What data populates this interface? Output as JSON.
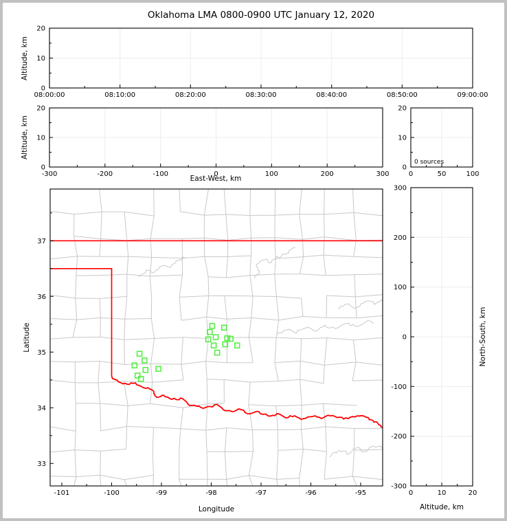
{
  "title": "Oklahoma LMA 0800-0900 UTC January 12, 2020",
  "colors": {
    "state_border": "#ff0000",
    "county_line": "#c8c8c8",
    "river_line": "#c8c8c8",
    "station_marker": "#55ee44",
    "gridline": "#ececec",
    "axis": "#000000",
    "frame_border": "#c1c1c1",
    "background": "#ffffff"
  },
  "chart_data": [
    {
      "id": "altitude_vs_time",
      "type": "scatter",
      "xlabel": "",
      "ylabel": "Altitude, km",
      "x_tick_labels": [
        "08:00:00",
        "08:10:00",
        "08:20:00",
        "08:30:00",
        "08:40:00",
        "08:50:00",
        "09:00:00"
      ],
      "y_tick_labels": [
        "0",
        "10",
        "20"
      ],
      "ylim": [
        0,
        20
      ],
      "grid": true,
      "points": []
    },
    {
      "id": "altitude_vs_eastwest",
      "type": "scatter",
      "xlabel": "East-West, km",
      "ylabel": "Altitude, km",
      "x_tick_labels": [
        "-300",
        "-200",
        "-100",
        "0",
        "100",
        "200",
        "300"
      ],
      "y_tick_labels": [
        "0",
        "10",
        "20"
      ],
      "xlim": [
        -300,
        300
      ],
      "ylim": [
        0,
        20
      ],
      "grid": true,
      "points": []
    },
    {
      "id": "altitude_source_histogram",
      "type": "scatter",
      "annotation": "0 sources",
      "x_tick_labels": [
        "0",
        "50",
        "100"
      ],
      "y_tick_labels": [
        "0",
        "10",
        "20"
      ],
      "xlim": [
        0,
        100
      ],
      "ylim": [
        0,
        20
      ],
      "grid": true,
      "points": []
    },
    {
      "id": "plan_view_map",
      "type": "scatter",
      "xlabel": "Longitude",
      "ylabel": "Latitude",
      "x_tick_labels": [
        "-101",
        "-100",
        "-99",
        "-98",
        "-97",
        "-96",
        "-95"
      ],
      "y_tick_labels": [
        "33",
        "34",
        "35",
        "36",
        "37"
      ],
      "xlim": [
        -101.234,
        -94.558
      ],
      "ylim": [
        32.596,
        37.93
      ],
      "state_border_latitude_north": 37.0,
      "panhandle_south_latitude": 36.5,
      "panhandle_east_longitude": -100.0,
      "stations_lon_lat": [
        [
          -97.98,
          35.47
        ],
        [
          -97.74,
          35.44
        ],
        [
          -98.03,
          35.36
        ],
        [
          -97.91,
          35.27
        ],
        [
          -98.06,
          35.23
        ],
        [
          -97.68,
          35.25
        ],
        [
          -97.61,
          35.24
        ],
        [
          -97.95,
          35.12
        ],
        [
          -97.72,
          35.14
        ],
        [
          -97.48,
          35.12
        ],
        [
          -97.88,
          34.99
        ],
        [
          -99.44,
          34.97
        ],
        [
          -99.34,
          34.85
        ],
        [
          -99.54,
          34.76
        ],
        [
          -99.32,
          34.68
        ],
        [
          -99.06,
          34.7
        ],
        [
          -99.48,
          34.58
        ],
        [
          -99.41,
          34.52
        ]
      ]
    },
    {
      "id": "northsouth_vs_altitude",
      "type": "scatter",
      "xlabel": "Altitude, km",
      "ylabel": "North-South, km",
      "x_tick_labels": [
        "0",
        "10",
        "20"
      ],
      "y_tick_labels": [
        "-300",
        "-200",
        "-100",
        "0",
        "100",
        "200",
        "300"
      ],
      "xlim": [
        0,
        20
      ],
      "ylim": [
        -300,
        300
      ],
      "grid": true,
      "points": []
    }
  ]
}
